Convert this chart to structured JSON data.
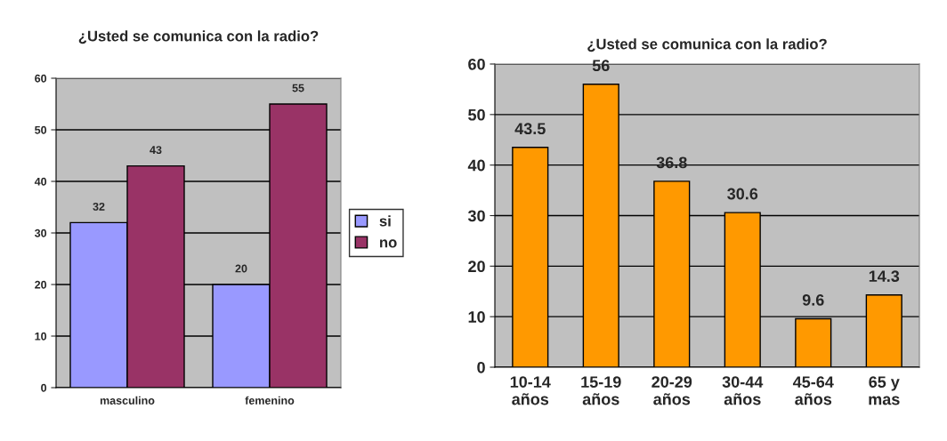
{
  "chart_data": [
    {
      "type": "bar",
      "title": "¿Usted se comunica con la radio?",
      "categories": [
        "masculino",
        "femenino"
      ],
      "series": [
        {
          "name": "si",
          "color": "#9999ff",
          "values": [
            32,
            20
          ]
        },
        {
          "name": "no",
          "color": "#993366",
          "values": [
            43,
            55
          ]
        }
      ],
      "ylim": [
        0,
        60
      ],
      "yticks": [
        0,
        10,
        20,
        30,
        40,
        50,
        60
      ],
      "grid": "y",
      "legend": "right",
      "data_labels": true
    },
    {
      "type": "bar",
      "title": "¿Usted se comunica con la radio?",
      "categories": [
        "10-14\naños",
        "15-19\naños",
        "20-29\naños",
        "30-44\naños",
        "45-64\naños",
        "65 y\nmas"
      ],
      "series": [
        {
          "color": "#ff9900",
          "values": [
            43.5,
            56,
            36.8,
            30.6,
            9.6,
            14.3
          ]
        }
      ],
      "ylim": [
        0,
        60
      ],
      "yticks": [
        0,
        10,
        20,
        30,
        40,
        50,
        60
      ],
      "grid": "y",
      "data_labels": true
    }
  ]
}
